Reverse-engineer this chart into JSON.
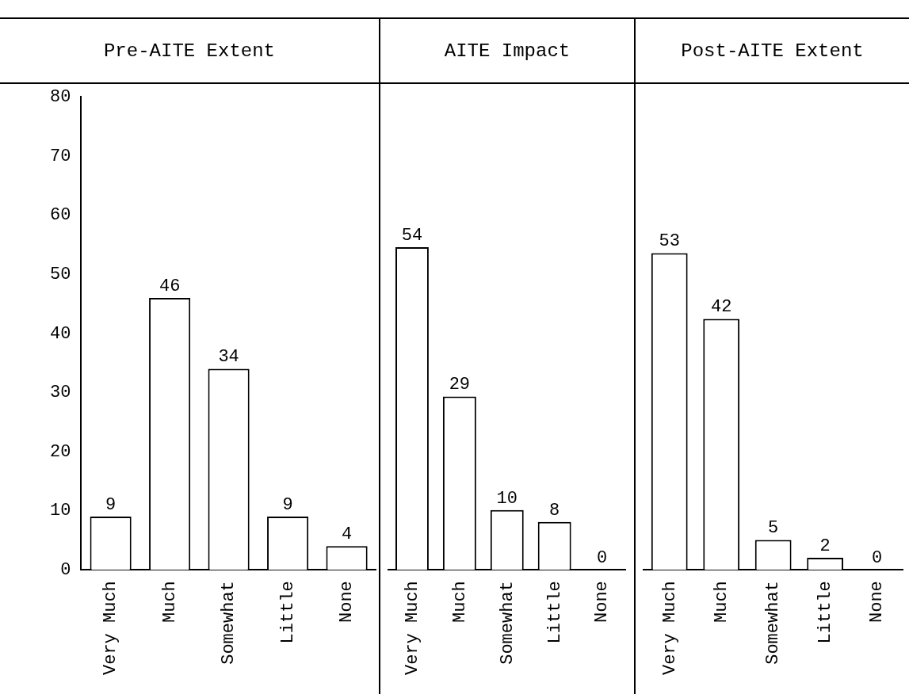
{
  "chart_data": [
    {
      "type": "bar",
      "title": "Pre-AITE Extent",
      "categories": [
        "Very Much",
        "Much",
        "Somewhat",
        "Little",
        "None"
      ],
      "values": [
        9,
        46,
        34,
        9,
        4
      ],
      "color": "#ffffff",
      "ylim": [
        0,
        80
      ],
      "yticks": [
        0,
        10,
        20,
        30,
        40,
        50,
        60,
        70,
        80
      ],
      "data_labels": true,
      "grid": false
    },
    {
      "type": "bar",
      "title": "AITE Impact",
      "categories": [
        "Very Much",
        "Much",
        "Somewhat",
        "Little",
        "None"
      ],
      "values": [
        54,
        29,
        10,
        8,
        0
      ],
      "color": "#ffffff",
      "ylim": [
        0,
        80
      ],
      "yticks": [
        0,
        10,
        20,
        30,
        40,
        50,
        60,
        70,
        80
      ],
      "data_labels": true,
      "grid": false,
      "tick_labels": "x"
    },
    {
      "type": "bar",
      "title": "Post-AITE Extent",
      "categories": [
        "Very Much",
        "Much",
        "Somewhat",
        "Little",
        "None"
      ],
      "values": [
        53,
        42,
        5,
        2,
        0
      ],
      "color": "#ffffff",
      "ylim": [
        0,
        80
      ],
      "yticks": [
        0,
        10,
        20,
        30,
        40,
        50,
        60,
        70,
        80
      ],
      "data_labels": true,
      "grid": false,
      "tick_labels": "x"
    }
  ]
}
